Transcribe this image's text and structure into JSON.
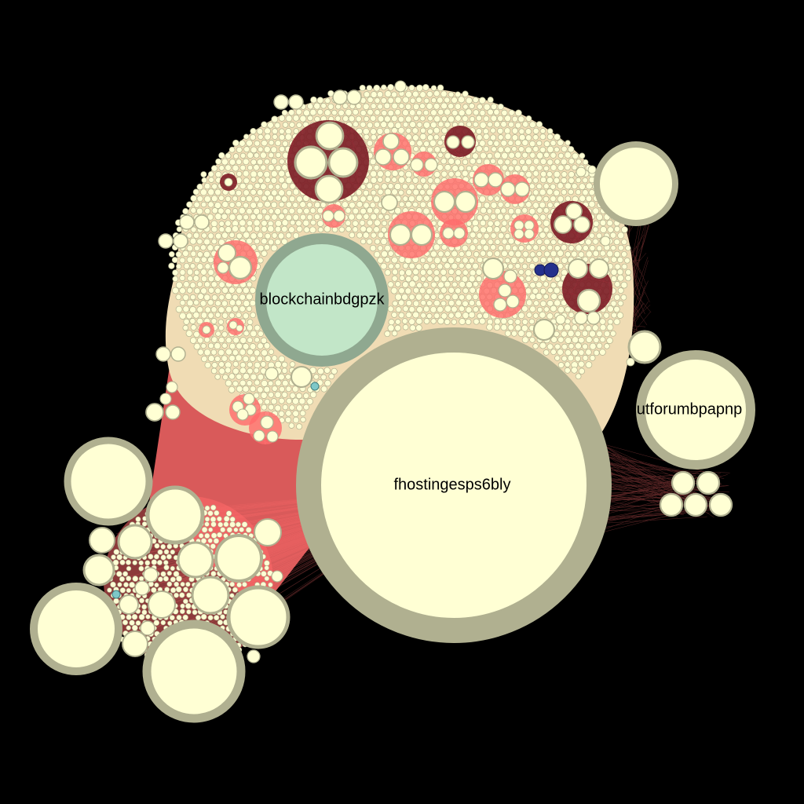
{
  "colors": {
    "background": "#000000",
    "node_fill": "#ffffd4",
    "node_border": "#b0b090",
    "highlight_fill": "#c2e6c8",
    "highlight_border": "#8fa890",
    "edge": "#ff6a6a",
    "edge_dark": "#7a1a24",
    "mass_fill": "#f0dcb4",
    "accent_blue": "#24308c",
    "accent_cyan": "#7ec8c8"
  },
  "labels": {
    "main_hub": "fhostingesps6bly",
    "blockchain_hub": "blockchainbdgpzk",
    "forum_hub": "utforumbpapnp"
  }
}
